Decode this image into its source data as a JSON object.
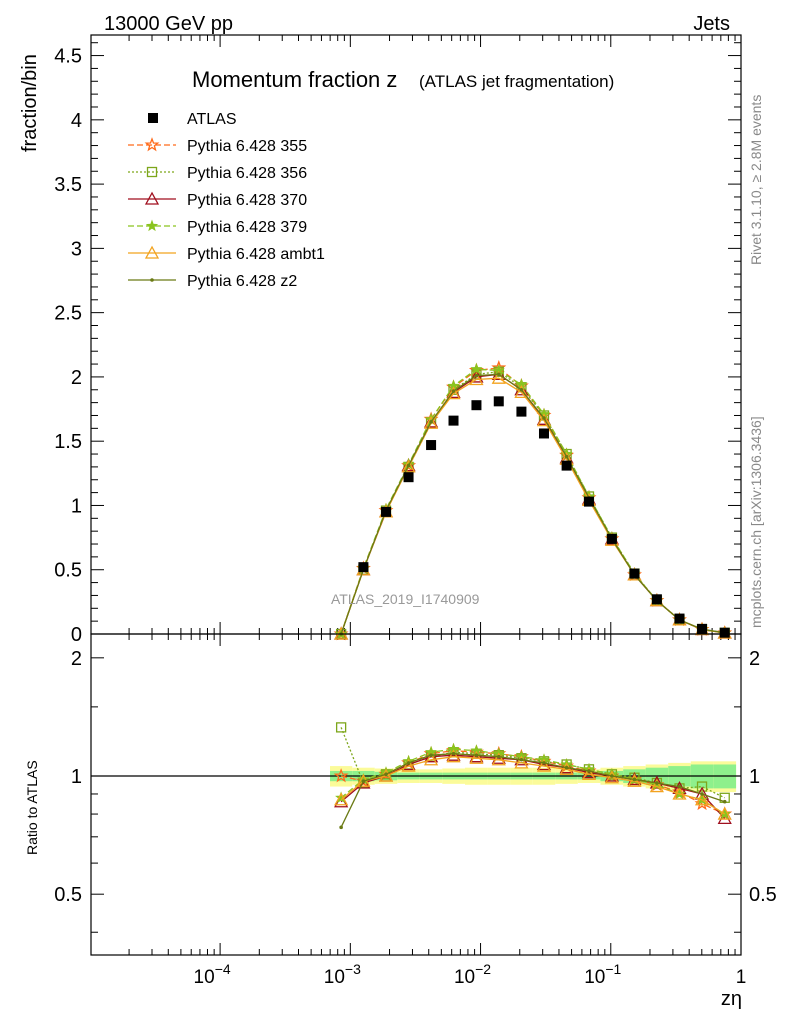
{
  "header": {
    "left_label": "13000 GeV pp",
    "right_label": "Jets",
    "side_top": "Rivet 3.1.10, ≥ 2.8M events",
    "side_bottom": "mcplots.cern.ch [arXiv:1306.3436]"
  },
  "chart_data": {
    "type": "scatter",
    "title_main": "Momentum fraction z",
    "title_sub": "(ATLAS jet fragmentation)",
    "analysis_label": "ATLAS_2019_I1740909",
    "xlabel": "zη",
    "ylabel_top": "fraction/bin",
    "ylabel_bottom": "Ratio to ATLAS",
    "xscale": "log",
    "xlim": [
      1.02e-05,
      1.0
    ],
    "top_ylim": [
      0,
      4.66
    ],
    "ratio_ylim": [
      0.35,
      2.3
    ],
    "x_tick_labels": [
      "10^-4",
      "10^-3",
      "10^-2",
      "10^-1",
      "1"
    ],
    "top_y_ticks": [
      "0",
      "0.5",
      "1",
      "1.5",
      "2",
      "2.5",
      "3",
      "3.5",
      "4",
      "4.5"
    ],
    "ratio_y_ticks": [
      "0.5",
      "1",
      "2"
    ],
    "ratio_y_tick_values": [
      0.5,
      1,
      2
    ],
    "x": [
      0.00085,
      0.00126,
      0.00188,
      0.0028,
      0.00417,
      0.0062,
      0.0093,
      0.0138,
      0.0206,
      0.0307,
      0.0458,
      0.068,
      0.102,
      0.152,
      0.226,
      0.337,
      0.502,
      0.75
    ],
    "reference": {
      "name": "ATLAS",
      "values": [
        0.0,
        0.52,
        0.95,
        1.22,
        1.47,
        1.66,
        1.78,
        1.81,
        1.73,
        1.56,
        1.31,
        1.03,
        0.74,
        0.47,
        0.27,
        0.12,
        0.04,
        0.01
      ],
      "band_inner_halfwidth": [
        0.03,
        0.03,
        0.025,
        0.02,
        0.02,
        0.02,
        0.02,
        0.02,
        0.02,
        0.02,
        0.02,
        0.02,
        0.03,
        0.04,
        0.05,
        0.06,
        0.07,
        0.07
      ],
      "band_outer_halfwidth": [
        0.06,
        0.05,
        0.045,
        0.04,
        0.04,
        0.045,
        0.05,
        0.05,
        0.05,
        0.05,
        0.045,
        0.04,
        0.05,
        0.06,
        0.07,
        0.08,
        0.09,
        0.09
      ]
    },
    "series": [
      {
        "name": "Pythia 6.428 355",
        "color": "#ff6a1a",
        "marker": "star",
        "dash": "6,3",
        "values": [
          0.0,
          0.51,
          0.96,
          1.31,
          1.67,
          1.92,
          2.05,
          2.07,
          1.93,
          1.7,
          1.39,
          1.06,
          0.74,
          0.46,
          0.26,
          0.11,
          0.035,
          0.008
        ],
        "ratio": [
          1.0,
          0.97,
          1.01,
          1.08,
          1.14,
          1.16,
          1.15,
          1.14,
          1.12,
          1.09,
          1.06,
          1.03,
          1.0,
          0.98,
          0.95,
          0.91,
          0.85,
          0.8
        ]
      },
      {
        "name": "Pythia 6.428 356",
        "color": "#7da61b",
        "marker": "square-open",
        "dash": "2,2",
        "values": [
          0.0,
          0.5,
          0.96,
          1.3,
          1.64,
          1.9,
          2.02,
          2.04,
          1.92,
          1.7,
          1.4,
          1.07,
          0.75,
          0.47,
          0.26,
          0.11,
          0.038,
          0.009
        ],
        "ratio": [
          1.33,
          0.96,
          1.01,
          1.07,
          1.12,
          1.15,
          1.14,
          1.13,
          1.11,
          1.09,
          1.07,
          1.04,
          1.01,
          0.99,
          0.96,
          0.93,
          0.94,
          0.88
        ]
      },
      {
        "name": "Pythia 6.428 370",
        "color": "#a00f1e",
        "marker": "triangle-open",
        "dash": "none",
        "values": [
          0.0,
          0.5,
          0.95,
          1.31,
          1.65,
          1.88,
          2.0,
          2.02,
          1.9,
          1.67,
          1.37,
          1.05,
          0.74,
          0.46,
          0.26,
          0.11,
          0.035,
          0.008
        ],
        "ratio": [
          0.86,
          0.96,
          1.0,
          1.07,
          1.12,
          1.13,
          1.12,
          1.11,
          1.1,
          1.07,
          1.05,
          1.02,
          1.0,
          0.98,
          0.96,
          0.93,
          0.9,
          0.78
        ]
      },
      {
        "name": "Pythia 6.428 379",
        "color": "#8ac41f",
        "marker": "star-filled",
        "dash": "6,3",
        "values": [
          0.0,
          0.51,
          0.97,
          1.32,
          1.67,
          1.93,
          2.06,
          2.05,
          1.94,
          1.71,
          1.4,
          1.07,
          0.75,
          0.47,
          0.26,
          0.11,
          0.036,
          0.008
        ],
        "ratio": [
          0.88,
          0.98,
          1.02,
          1.09,
          1.15,
          1.17,
          1.16,
          1.14,
          1.12,
          1.1,
          1.07,
          1.04,
          1.01,
          0.98,
          0.95,
          0.9,
          0.87,
          0.8
        ]
      },
      {
        "name": "Pythia 6.428 ambt1",
        "color": "#f2a31f",
        "marker": "triangle-open",
        "dash": "none",
        "values": [
          0.0,
          0.5,
          0.95,
          1.3,
          1.64,
          1.87,
          1.98,
          1.99,
          1.88,
          1.66,
          1.36,
          1.04,
          0.73,
          0.46,
          0.26,
          0.11,
          0.035,
          0.008
        ],
        "ratio": [
          0.87,
          0.97,
          1.0,
          1.06,
          1.1,
          1.12,
          1.11,
          1.1,
          1.08,
          1.06,
          1.04,
          1.01,
          0.99,
          0.97,
          0.94,
          0.9,
          0.87,
          0.8
        ]
      },
      {
        "name": "Pythia 6.428 z2",
        "color": "#6a7a14",
        "marker": "dot",
        "dash": "none",
        "values": [
          0.0,
          0.5,
          0.96,
          1.31,
          1.65,
          1.89,
          2.01,
          2.02,
          1.9,
          1.68,
          1.38,
          1.06,
          0.74,
          0.46,
          0.26,
          0.11,
          0.037,
          0.009
        ],
        "ratio": [
          0.74,
          0.97,
          1.01,
          1.08,
          1.13,
          1.14,
          1.13,
          1.12,
          1.1,
          1.08,
          1.05,
          1.03,
          1.0,
          0.98,
          0.96,
          0.94,
          0.9,
          0.86
        ]
      }
    ]
  }
}
